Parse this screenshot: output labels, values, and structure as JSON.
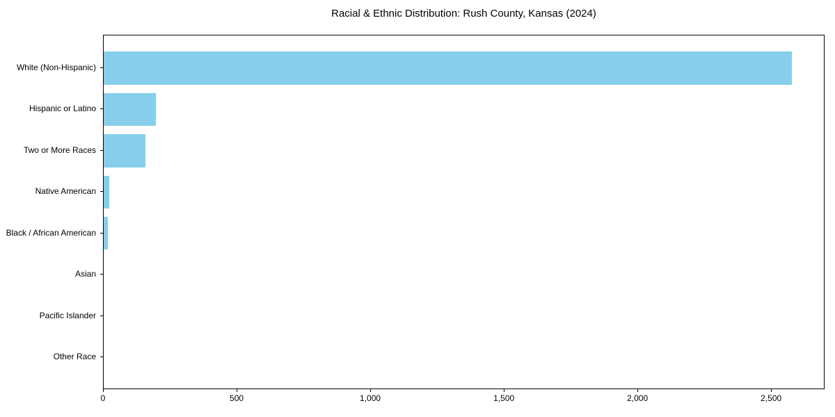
{
  "title": "Racial & Ethnic Distribution: Rush County, Kansas (2024)",
  "chart_data": {
    "type": "bar",
    "orientation": "horizontal",
    "title": "Racial & Ethnic Distribution: Rush County, Kansas (2024)",
    "xlabel": "",
    "ylabel": "",
    "categories": [
      "White (Non-Hispanic)",
      "Hispanic or Latino",
      "Two or More Races",
      "Native American",
      "Black / African American",
      "Asian",
      "Pacific Islander",
      "Other Race"
    ],
    "values": [
      2575,
      195,
      155,
      20,
      15,
      0,
      0,
      0
    ],
    "xlim": [
      0,
      2700
    ],
    "xticks": [
      0,
      500,
      1000,
      1500,
      2000,
      2500
    ],
    "xtick_labels": [
      "0",
      "500",
      "1,000",
      "1,500",
      "2,000",
      "2,500"
    ],
    "bar_color": "#87CEEB",
    "axis_color": "#000000",
    "text_color": "#000000",
    "background_color": "#ffffff",
    "grid": false,
    "legend": null
  }
}
